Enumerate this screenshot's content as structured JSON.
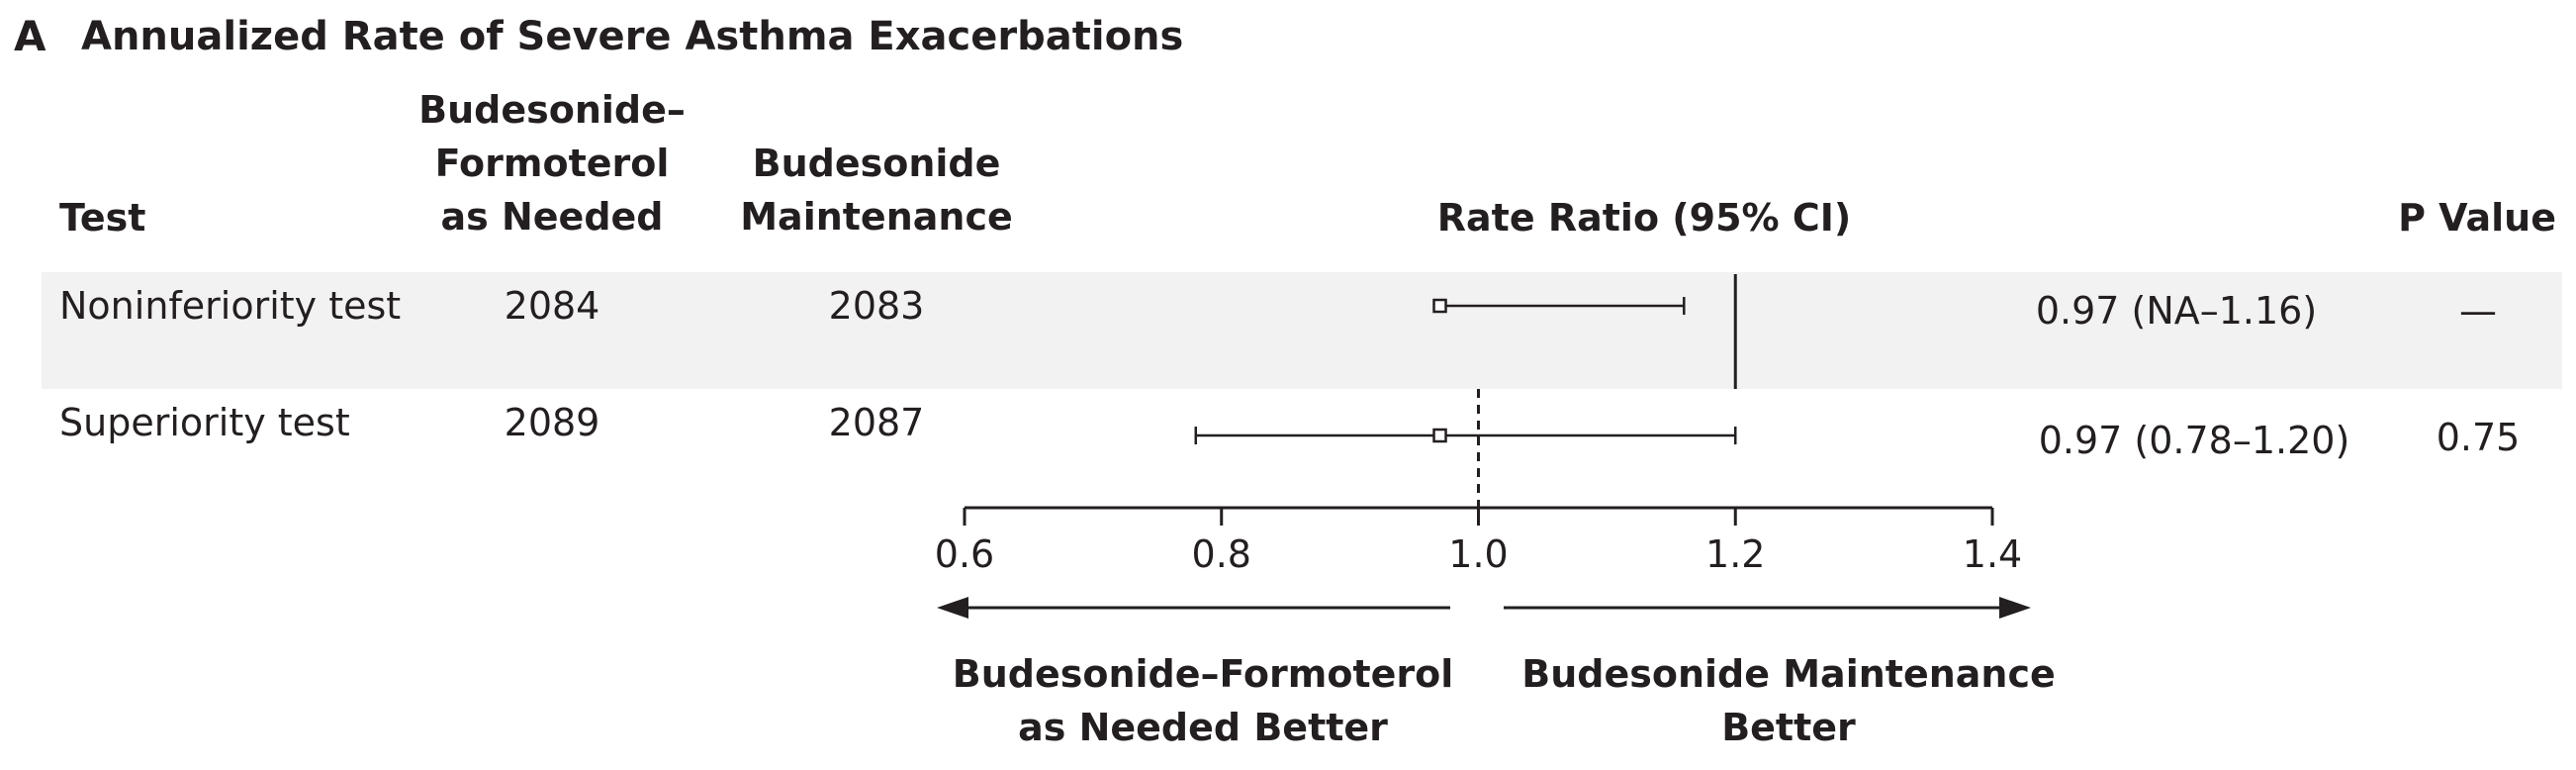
{
  "panel": {
    "letter": "A",
    "title": "Annualized Rate of Severe Asthma Exacerbations"
  },
  "headers": {
    "test": "Test",
    "group1": [
      "Budesonide–",
      "Formoterol",
      "as Needed"
    ],
    "group2": [
      "Budesonide",
      "Maintenance"
    ],
    "effect": "Rate Ratio (95% CI)",
    "pvalue": "P Value"
  },
  "rows": [
    {
      "test": "Noninferiority test",
      "n1": "2084",
      "n2": "2083",
      "ci_text": "0.97 (NA–1.16)",
      "p": "—"
    },
    {
      "test": "Superiority test",
      "n1": "2089",
      "n2": "2087",
      "ci_text": "0.97 (0.78–1.20)",
      "p": "0.75"
    }
  ],
  "directions": {
    "left": [
      "Budesonide–Formoterol",
      "as Needed Better"
    ],
    "right": [
      "Budesonide Maintenance",
      "Better"
    ]
  },
  "colors": {
    "text": "#231f20",
    "band": "#f2f2f2",
    "background": "#ffffff"
  },
  "chart_data": {
    "type": "forest",
    "xlim": [
      0.6,
      1.4
    ],
    "xticks": [
      "0.6",
      "0.8",
      "1.0",
      "1.2",
      "1.4"
    ],
    "reference_line": {
      "value": 1.0,
      "style": "dashed"
    },
    "margin_line": {
      "value": 1.2,
      "style": "solid"
    },
    "points": [
      {
        "estimate": 0.97,
        "lower": null,
        "upper": 1.16
      },
      {
        "estimate": 0.97,
        "lower": 0.78,
        "upper": 1.2
      }
    ]
  }
}
